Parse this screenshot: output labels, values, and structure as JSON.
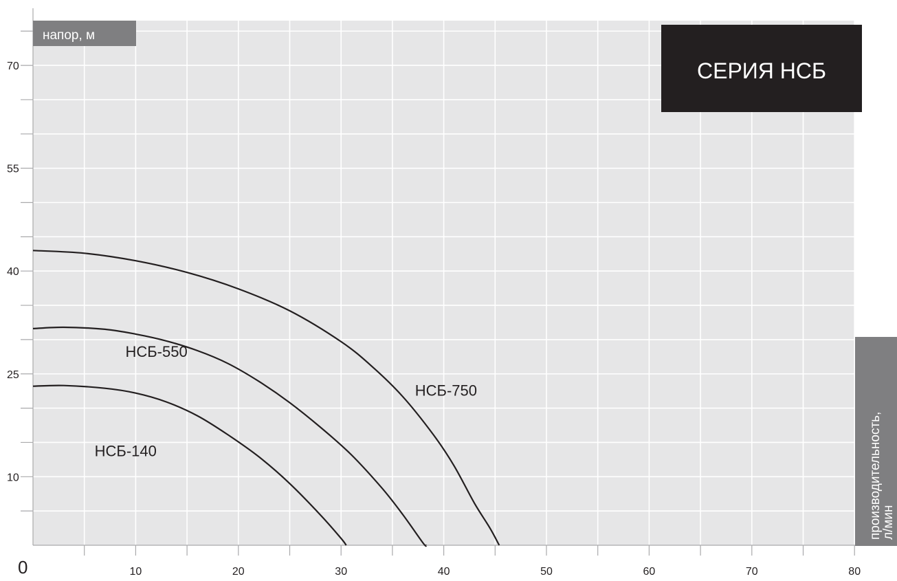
{
  "chart_data": {
    "type": "line",
    "title": "СЕРИЯ НСБ",
    "ylabel": "напор, м",
    "xlabel": "производительность, л/мин",
    "x_origin_label": "0",
    "x_ticks": [
      10,
      20,
      30,
      40,
      50,
      60,
      70,
      80
    ],
    "y_ticks": [
      10,
      25,
      40,
      55,
      70
    ],
    "xlim": [
      0,
      80.5
    ],
    "ylim": [
      0,
      76
    ],
    "grid": true,
    "series": [
      {
        "name": "НСБ-140",
        "x": [
          0,
          3,
          7,
          10,
          13,
          16,
          19,
          22,
          25,
          28,
          30,
          30.5
        ],
        "y": [
          23.2,
          23.3,
          22.9,
          22.2,
          20.9,
          18.9,
          16.1,
          12.9,
          9.0,
          4.4,
          1.0,
          0
        ]
      },
      {
        "name": "НСБ-550",
        "x": [
          0,
          3,
          7,
          10,
          13,
          16,
          19,
          22,
          25,
          28,
          31,
          34,
          36,
          38,
          38.3
        ],
        "y": [
          31.6,
          31.8,
          31.5,
          30.8,
          29.8,
          28.4,
          26.5,
          23.9,
          20.8,
          17.2,
          13.2,
          8.3,
          4.5,
          0.3,
          0
        ]
      },
      {
        "name": "НСБ-750",
        "x": [
          0,
          5,
          10,
          15,
          20,
          25,
          30,
          33,
          36,
          39,
          41,
          43,
          44.5,
          45.4
        ],
        "y": [
          43.0,
          42.6,
          41.5,
          39.8,
          37.4,
          34.2,
          29.7,
          26.1,
          21.7,
          16.1,
          11.6,
          6.1,
          2.5,
          0
        ]
      }
    ],
    "series_label_positions": [
      {
        "name": "НСБ-140",
        "x": 6,
        "y": 13.0
      },
      {
        "name": "НСБ-550",
        "x": 9,
        "y": 27.5
      },
      {
        "name": "НСБ-750",
        "x": 37.2,
        "y": 21.8
      }
    ]
  }
}
